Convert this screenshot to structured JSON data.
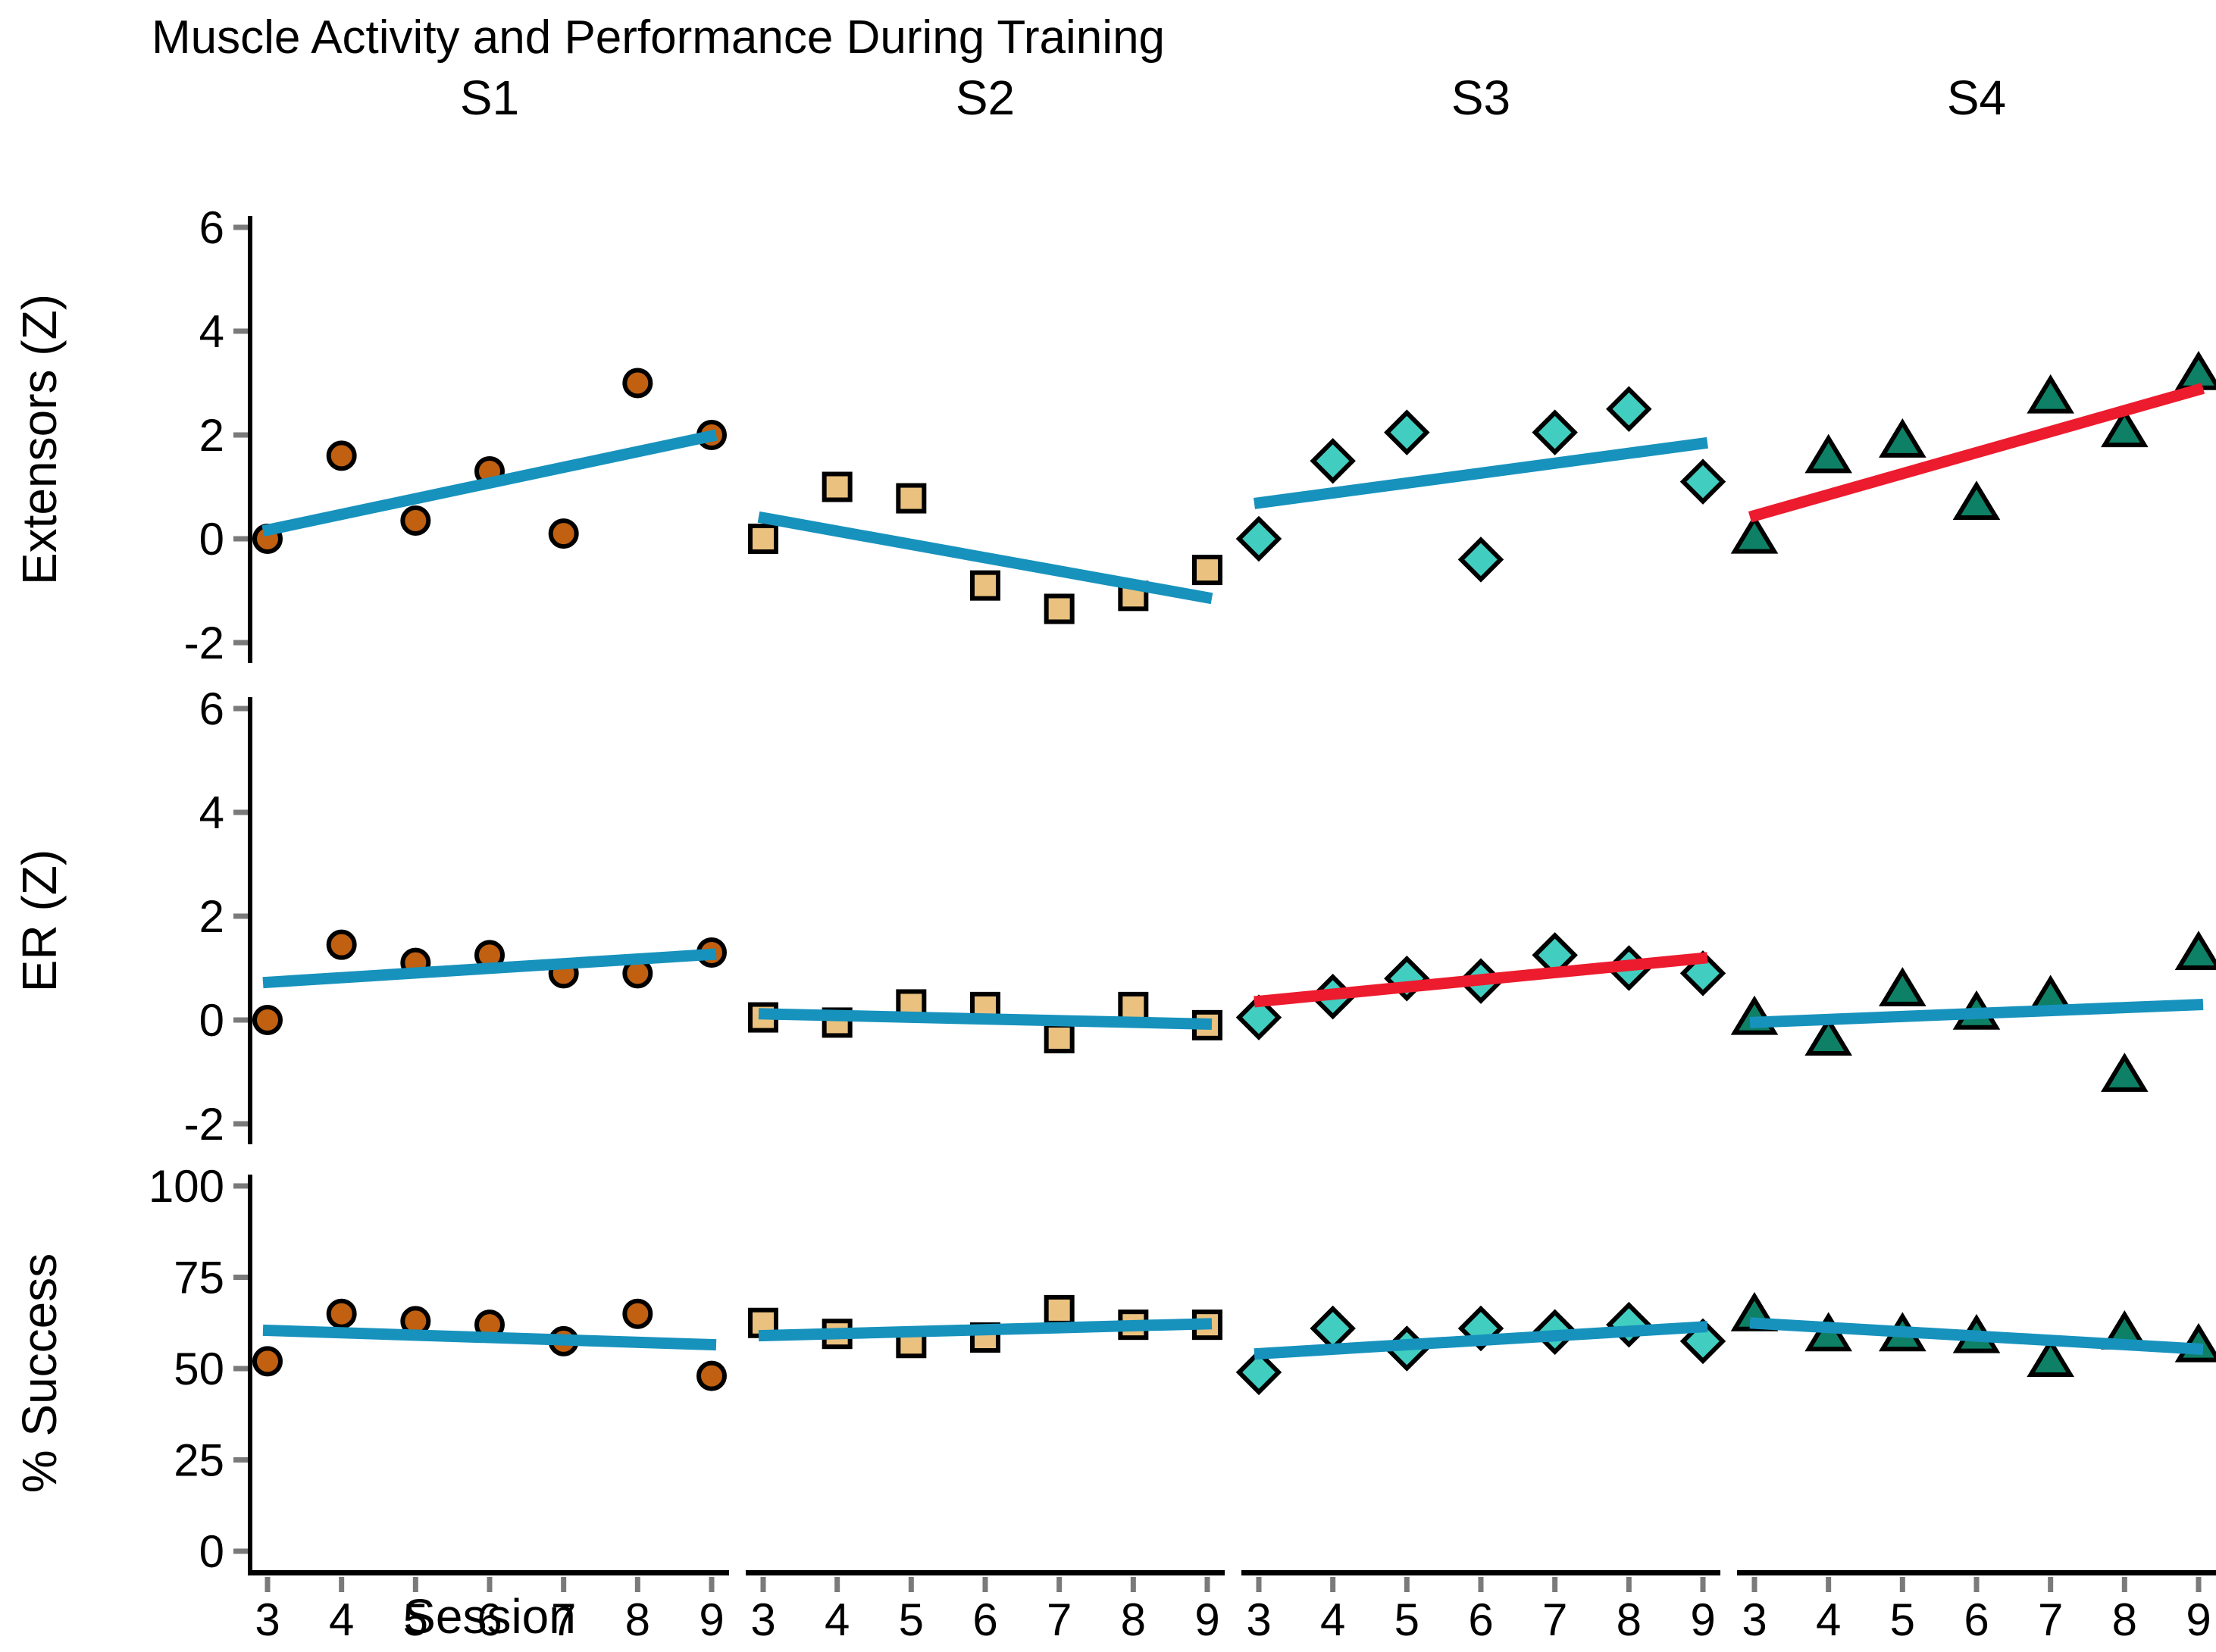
{
  "title": "Muscle Activity and Performance During Training",
  "xlabel": "Session",
  "colors": {
    "trend_default": "#1792bd",
    "trend_highlight": "#ec1b2d",
    "marker_s1": "#c06010",
    "marker_s2": "#eac17e",
    "marker_s3": "#41cec0",
    "marker_s4": "#0e8065",
    "axis": "#000000",
    "tick": "#7a7a7a"
  },
  "chart_data": {
    "type": "scatter",
    "x": [
      3,
      4,
      5,
      6,
      7,
      8,
      9
    ],
    "x_ticks": [
      "3",
      "4",
      "5",
      "6",
      "7",
      "8",
      "9"
    ],
    "facets": [
      "S1",
      "S2",
      "S3",
      "S4"
    ],
    "legend_position": "none",
    "grid": "off",
    "rows": [
      {
        "ylabel": "Extensors (Z)",
        "ylim": [
          -2.4,
          6.2
        ],
        "yticks": [
          6,
          4,
          2,
          0,
          -2
        ],
        "series": [
          {
            "facet": "S1",
            "marker": "circle",
            "marker_color": "#c06010",
            "values": [
              0.0,
              1.6,
              0.35,
              1.3,
              0.1,
              3.0,
              2.0
            ],
            "trend": {
              "color": "#1792bd",
              "start": 0.15,
              "end": 2.0
            }
          },
          {
            "facet": "S2",
            "marker": "square",
            "marker_color": "#eac17e",
            "values": [
              0.0,
              1.0,
              0.78,
              -0.9,
              -1.35,
              -1.1,
              -0.6
            ],
            "trend": {
              "color": "#1792bd",
              "start": 0.42,
              "end": -1.15
            }
          },
          {
            "facet": "S3",
            "marker": "diamond",
            "marker_color": "#41cec0",
            "values": [
              0.0,
              1.5,
              2.05,
              -0.4,
              2.05,
              2.5,
              1.1
            ],
            "trend": {
              "color": "#1792bd",
              "start": 0.68,
              "end": 1.85
            }
          },
          {
            "facet": "S4",
            "marker": "triangle",
            "marker_color": "#0e8065",
            "values": [
              0.05,
              1.6,
              1.9,
              0.7,
              2.75,
              2.1,
              3.2
            ],
            "trend": {
              "color": "#ec1b2d",
              "start": 0.42,
              "end": 2.9
            }
          }
        ]
      },
      {
        "ylabel": "ER (Z)",
        "ylim": [
          -2.4,
          6.2
        ],
        "yticks": [
          6,
          4,
          2,
          0,
          -2
        ],
        "series": [
          {
            "facet": "S1",
            "marker": "circle",
            "marker_color": "#c06010",
            "values": [
              0.0,
              1.45,
              1.1,
              1.25,
              0.9,
              0.9,
              1.3
            ],
            "trend": {
              "color": "#1792bd",
              "start": 0.72,
              "end": 1.27
            }
          },
          {
            "facet": "S2",
            "marker": "square",
            "marker_color": "#eac17e",
            "values": [
              0.05,
              -0.05,
              0.3,
              0.25,
              -0.35,
              0.25,
              -0.1
            ],
            "trend": {
              "color": "#1792bd",
              "start": 0.12,
              "end": -0.08
            }
          },
          {
            "facet": "S3",
            "marker": "diamond",
            "marker_color": "#41cec0",
            "values": [
              0.05,
              0.45,
              0.8,
              0.75,
              1.25,
              1.0,
              0.9
            ],
            "trend": {
              "color": "#ec1b2d",
              "start": 0.35,
              "end": 1.2
            }
          },
          {
            "facet": "S4",
            "marker": "triangle",
            "marker_color": "#0e8065",
            "values": [
              0.05,
              -0.35,
              0.6,
              0.15,
              0.45,
              -1.05,
              1.3
            ],
            "trend": {
              "color": "#1792bd",
              "start": -0.05,
              "end": 0.3
            }
          }
        ]
      },
      {
        "ylabel": "% Success",
        "ylim": [
          -6,
          103
        ],
        "yticks": [
          100,
          75,
          50,
          25,
          0
        ],
        "series": [
          {
            "facet": "S1",
            "marker": "circle",
            "marker_color": "#c06010",
            "values": [
              52,
              65,
              63,
              62,
              57.5,
              65,
              48
            ],
            "trend": {
              "color": "#1792bd",
              "start": 60.5,
              "end": 56.5
            }
          },
          {
            "facet": "S2",
            "marker": "square",
            "marker_color": "#eac17e",
            "values": [
              62.5,
              59.5,
              57,
              58.5,
              66,
              62,
              62
            ],
            "trend": {
              "color": "#1792bd",
              "start": 59.0,
              "end": 62.3
            }
          },
          {
            "facet": "S3",
            "marker": "diamond",
            "marker_color": "#41cec0",
            "values": [
              49,
              61,
              55.5,
              61,
              60,
              62,
              57.5
            ],
            "trend": {
              "color": "#1792bd",
              "start": 54.0,
              "end": 61.5
            }
          },
          {
            "facet": "S4",
            "marker": "triangle",
            "marker_color": "#0e8065",
            "values": [
              65,
              59.5,
              59.5,
              59,
              52.5,
              60,
              56.5
            ],
            "trend": {
              "color": "#1792bd",
              "start": 62.5,
              "end": 55.3
            }
          }
        ]
      }
    ]
  }
}
